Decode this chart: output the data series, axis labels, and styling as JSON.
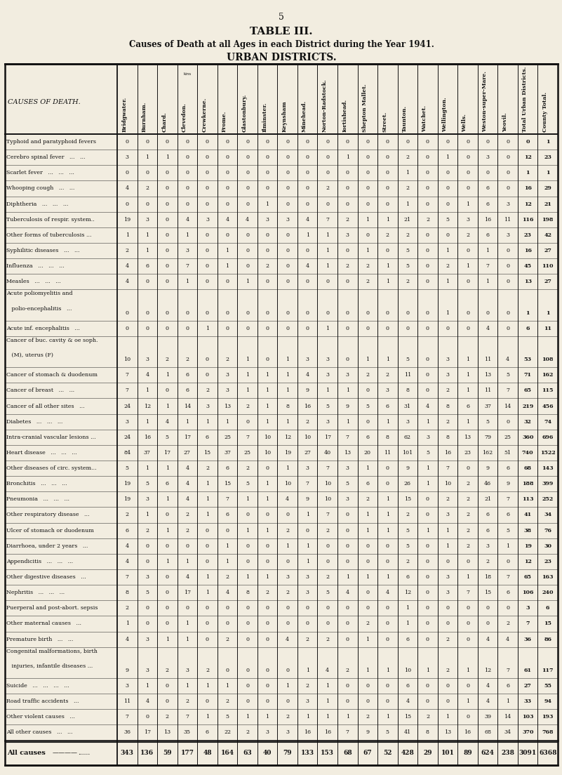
{
  "page_number": "5",
  "title1": "TABLE III.",
  "title2": "Causes of Death at all Ages in each District during the Year 1941.",
  "title3": "URBAN DISTRICTS.",
  "columns": [
    "Bridgwater.",
    "Burnham.",
    "Chard.",
    "Clevedon.",
    "Crewkerne.",
    "Frome.",
    "Glastonbury.",
    "Ilminster.",
    "Keynsham",
    "Minehead.",
    "Norton-Radstock.",
    "Iortishead.",
    "Shepton Mallet.",
    "Street.",
    "Taunton.",
    "Watchet.",
    "Wellington.",
    "Wells.",
    "Weston-super-Mare.",
    "Yeovil.",
    "Total Urban Districts.",
    "County Total."
  ],
  "rows": [
    {
      "cause": "Typhoid and paratyphoid fevers",
      "multiline": false,
      "values": [
        0,
        0,
        0,
        0,
        0,
        0,
        0,
        0,
        0,
        0,
        0,
        0,
        0,
        0,
        0,
        0,
        0,
        0,
        0,
        0,
        0,
        1
      ]
    },
    {
      "cause": "Cerebro spinal fever   ...   ...",
      "multiline": false,
      "values": [
        3,
        1,
        1,
        0,
        0,
        0,
        0,
        0,
        0,
        0,
        0,
        1,
        0,
        0,
        2,
        0,
        1,
        0,
        3,
        0,
        12,
        23
      ]
    },
    {
      "cause": "Scarlet fever   ...   ...   ...",
      "multiline": false,
      "values": [
        0,
        0,
        0,
        0,
        0,
        0,
        0,
        0,
        0,
        0,
        0,
        0,
        0,
        0,
        1,
        0,
        0,
        0,
        0,
        0,
        1,
        1
      ]
    },
    {
      "cause": "Whooping cough   ...   ...",
      "multiline": false,
      "values": [
        4,
        2,
        0,
        0,
        0,
        0,
        0,
        0,
        0,
        0,
        2,
        0,
        0,
        0,
        2,
        0,
        0,
        0,
        6,
        0,
        16,
        29
      ]
    },
    {
      "cause": "Diphtheria   ...   ...   ...",
      "multiline": false,
      "values": [
        0,
        0,
        0,
        0,
        0,
        0,
        0,
        1,
        0,
        0,
        0,
        0,
        0,
        0,
        1,
        0,
        0,
        1,
        6,
        3,
        12,
        21
      ]
    },
    {
      "cause": "Tuberculosis of respir. system..",
      "multiline": false,
      "values": [
        19,
        3,
        0,
        4,
        3,
        4,
        4,
        3,
        3,
        4,
        7,
        2,
        1,
        1,
        21,
        2,
        5,
        3,
        16,
        11,
        116,
        198
      ]
    },
    {
      "cause": "Other forms of tuberculosis ...",
      "multiline": false,
      "values": [
        1,
        1,
        0,
        1,
        0,
        0,
        0,
        0,
        0,
        1,
        1,
        3,
        0,
        2,
        2,
        0,
        0,
        2,
        6,
        3,
        23,
        42
      ]
    },
    {
      "cause": "Syphilitic diseases   ...   ...",
      "multiline": false,
      "values": [
        2,
        1,
        0,
        3,
        0,
        1,
        0,
        0,
        0,
        0,
        1,
        0,
        1,
        0,
        5,
        0,
        1,
        0,
        1,
        0,
        16,
        27
      ]
    },
    {
      "cause": "Influenza   ...   ...   ...",
      "multiline": false,
      "values": [
        4,
        6,
        0,
        7,
        0,
        1,
        0,
        2,
        0,
        4,
        1,
        2,
        2,
        1,
        5,
        0,
        2,
        1,
        7,
        0,
        45,
        110
      ]
    },
    {
      "cause": "Measles   ...   ...   ...",
      "multiline": false,
      "values": [
        4,
        0,
        0,
        1,
        0,
        0,
        1,
        0,
        0,
        0,
        0,
        0,
        2,
        1,
        2,
        0,
        1,
        0,
        1,
        0,
        13,
        27
      ]
    },
    {
      "cause": "Acute poliomyelitis and",
      "cause2": "   polio-encephalitis   ...",
      "multiline": true,
      "values": [
        0,
        0,
        0,
        0,
        0,
        0,
        0,
        0,
        0,
        0,
        0,
        0,
        0,
        0,
        0,
        0,
        1,
        0,
        0,
        0,
        1,
        1
      ]
    },
    {
      "cause": "Acute inf. encephalitis   ...",
      "multiline": false,
      "values": [
        0,
        0,
        0,
        0,
        1,
        0,
        0,
        0,
        0,
        0,
        1,
        0,
        0,
        0,
        0,
        0,
        0,
        0,
        4,
        0,
        6,
        11
      ]
    },
    {
      "cause": "Cancer of buc. cavity & oe soph.",
      "cause2": "   (M), uterus (F)",
      "multiline": true,
      "values": [
        10,
        3,
        2,
        2,
        0,
        2,
        1,
        0,
        1,
        3,
        3,
        0,
        1,
        1,
        5,
        0,
        3,
        1,
        11,
        4,
        53,
        108
      ]
    },
    {
      "cause": "Cancer of stomach & duodenum",
      "multiline": false,
      "values": [
        7,
        4,
        1,
        6,
        0,
        3,
        1,
        1,
        1,
        4,
        3,
        3,
        2,
        2,
        11,
        0,
        3,
        1,
        13,
        5,
        71,
        162
      ]
    },
    {
      "cause": "Cancer of breast   ...   ...",
      "multiline": false,
      "values": [
        7,
        1,
        0,
        6,
        2,
        3,
        1,
        1,
        1,
        9,
        1,
        1,
        0,
        3,
        8,
        0,
        2,
        1,
        11,
        7,
        65,
        115
      ]
    },
    {
      "cause": "Cancer of all other sites   ...",
      "multiline": false,
      "values": [
        24,
        12,
        1,
        14,
        3,
        13,
        2,
        1,
        8,
        16,
        5,
        9,
        5,
        6,
        31,
        4,
        8,
        6,
        37,
        14,
        219,
        456
      ]
    },
    {
      "cause": "Diabetes   ...   ...   ...",
      "multiline": false,
      "values": [
        3,
        1,
        4,
        1,
        1,
        1,
        0,
        1,
        1,
        2,
        3,
        1,
        0,
        1,
        3,
        1,
        2,
        1,
        5,
        0,
        32,
        74
      ]
    },
    {
      "cause": "Intra-cranial vascular lesions ...",
      "multiline": false,
      "values": [
        24,
        16,
        5,
        17,
        6,
        25,
        7,
        10,
        12,
        10,
        17,
        7,
        6,
        8,
        62,
        3,
        8,
        13,
        79,
        25,
        360,
        696
      ]
    },
    {
      "cause": "Heart disease   ...   ...   ...",
      "multiline": false,
      "values": [
        84,
        37,
        17,
        27,
        15,
        37,
        25,
        10,
        19,
        27,
        40,
        13,
        20,
        11,
        101,
        5,
        16,
        23,
        162,
        51,
        740,
        1522
      ]
    },
    {
      "cause": "Other diseases of circ. system...",
      "multiline": false,
      "values": [
        5,
        1,
        1,
        4,
        2,
        6,
        2,
        0,
        1,
        3,
        7,
        3,
        1,
        0,
        9,
        1,
        7,
        0,
        9,
        6,
        68,
        143
      ]
    },
    {
      "cause": "Bronchitis   ...   ...   ...",
      "multiline": false,
      "values": [
        19,
        5,
        6,
        4,
        1,
        15,
        5,
        1,
        10,
        7,
        10,
        5,
        6,
        0,
        26,
        1,
        10,
        2,
        46,
        9,
        188,
        399
      ]
    },
    {
      "cause": "Pneumonia   ...   ...   ...",
      "multiline": false,
      "values": [
        19,
        3,
        1,
        4,
        1,
        7,
        1,
        1,
        4,
        9,
        10,
        3,
        2,
        1,
        15,
        0,
        2,
        2,
        21,
        7,
        113,
        252
      ]
    },
    {
      "cause": "Other respiratory disease   ...",
      "multiline": false,
      "values": [
        2,
        1,
        0,
        2,
        1,
        6,
        0,
        0,
        0,
        1,
        7,
        0,
        1,
        1,
        2,
        0,
        3,
        2,
        6,
        6,
        41,
        34
      ]
    },
    {
      "cause": "Ulcer of stomach or duodenum",
      "multiline": false,
      "values": [
        6,
        2,
        1,
        2,
        0,
        0,
        1,
        1,
        2,
        0,
        2,
        0,
        1,
        1,
        5,
        1,
        1,
        2,
        6,
        5,
        38,
        76
      ]
    },
    {
      "cause": "Diarrhoea, under 2 years   ...",
      "multiline": false,
      "values": [
        4,
        0,
        0,
        0,
        0,
        1,
        0,
        0,
        1,
        1,
        0,
        0,
        0,
        0,
        5,
        0,
        1,
        2,
        3,
        1,
        19,
        30
      ]
    },
    {
      "cause": "Appendicitis   ...   ...   ...",
      "multiline": false,
      "values": [
        4,
        0,
        1,
        1,
        0,
        1,
        0,
        0,
        0,
        1,
        0,
        0,
        0,
        0,
        2,
        0,
        0,
        0,
        2,
        0,
        12,
        23
      ]
    },
    {
      "cause": "Other digestive diseases   ...",
      "multiline": false,
      "values": [
        7,
        3,
        0,
        4,
        1,
        2,
        1,
        1,
        3,
        3,
        2,
        1,
        1,
        1,
        6,
        0,
        3,
        1,
        18,
        7,
        65,
        163
      ]
    },
    {
      "cause": "Nephritis   ...   ...   ...",
      "multiline": false,
      "values": [
        8,
        5,
        0,
        17,
        1,
        4,
        8,
        2,
        2,
        3,
        5,
        4,
        0,
        4,
        12,
        0,
        3,
        7,
        15,
        6,
        106,
        240
      ]
    },
    {
      "cause": "Puerperal and post-abort. sepsis",
      "multiline": false,
      "values": [
        2,
        0,
        0,
        0,
        0,
        0,
        0,
        0,
        0,
        0,
        0,
        0,
        0,
        0,
        1,
        0,
        0,
        0,
        0,
        0,
        3,
        6
      ]
    },
    {
      "cause": "Other maternal causes   ...",
      "multiline": false,
      "values": [
        1,
        0,
        0,
        1,
        0,
        0,
        0,
        0,
        0,
        0,
        0,
        0,
        2,
        0,
        1,
        0,
        0,
        0,
        0,
        2,
        7,
        15
      ]
    },
    {
      "cause": "Premature birth   ...   ...",
      "multiline": false,
      "values": [
        4,
        3,
        1,
        1,
        0,
        2,
        0,
        0,
        4,
        2,
        2,
        0,
        1,
        0,
        6,
        0,
        2,
        0,
        4,
        4,
        36,
        86
      ]
    },
    {
      "cause": "Congenital malformations, birth",
      "cause2": "   injuries, infantile diseases ...",
      "multiline": true,
      "values": [
        9,
        3,
        2,
        3,
        2,
        0,
        0,
        0,
        0,
        1,
        4,
        2,
        1,
        1,
        10,
        1,
        2,
        1,
        12,
        7,
        61,
        117
      ]
    },
    {
      "cause": "Suicide   ...   ...   ...   ...",
      "multiline": false,
      "values": [
        3,
        1,
        0,
        1,
        1,
        1,
        0,
        0,
        1,
        2,
        1,
        0,
        0,
        0,
        6,
        0,
        0,
        0,
        4,
        6,
        27,
        55
      ]
    },
    {
      "cause": "Road traffic accidents   ...",
      "multiline": false,
      "values": [
        11,
        4,
        0,
        2,
        0,
        2,
        0,
        0,
        0,
        3,
        1,
        0,
        0,
        0,
        4,
        0,
        0,
        1,
        4,
        1,
        33,
        94
      ]
    },
    {
      "cause": "Other violent causes   ...",
      "multiline": false,
      "values": [
        7,
        0,
        2,
        7,
        1,
        5,
        1,
        1,
        2,
        1,
        1,
        1,
        2,
        1,
        15,
        2,
        1,
        0,
        39,
        14,
        103,
        193
      ]
    },
    {
      "cause": "All other causes   ...   ...",
      "multiline": false,
      "values": [
        36,
        17,
        13,
        35,
        6,
        22,
        2,
        3,
        3,
        16,
        16,
        7,
        9,
        5,
        41,
        8,
        13,
        16,
        68,
        34,
        370,
        768
      ]
    }
  ],
  "totals_row": {
    "cause": "All causes",
    "values": [
      343,
      136,
      59,
      177,
      48,
      164,
      63,
      40,
      79,
      133,
      153,
      68,
      67,
      52,
      428,
      29,
      101,
      89,
      624,
      238,
      3091,
      6368
    ]
  },
  "bg_color": "#f2ede0",
  "line_color": "#111111",
  "text_color": "#111111"
}
